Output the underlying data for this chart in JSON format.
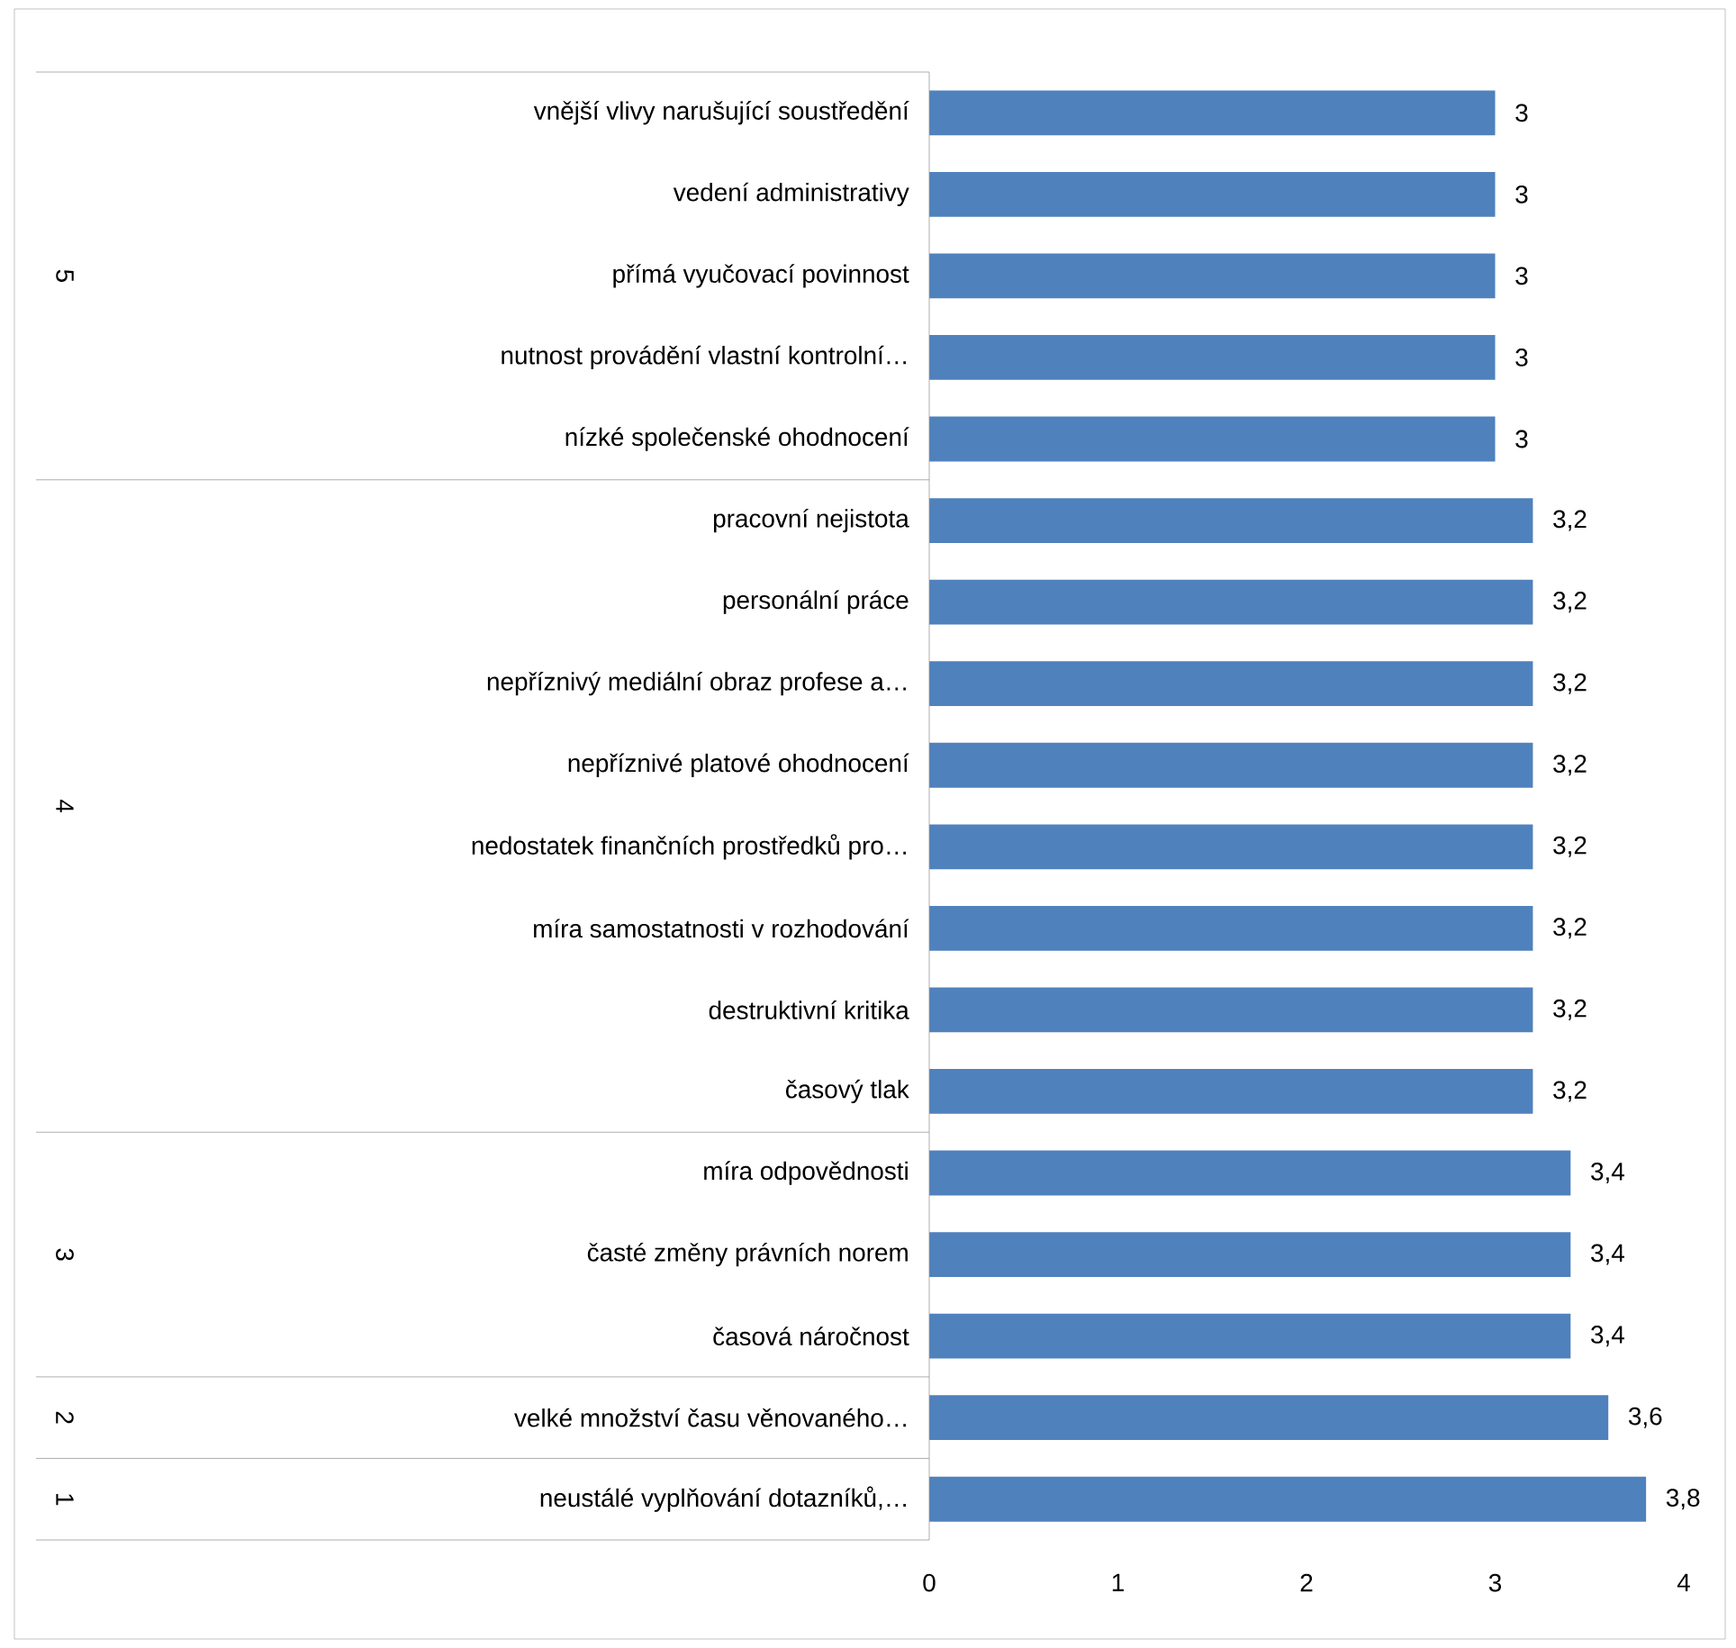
{
  "chart_data": {
    "type": "bar",
    "orientation": "horizontal",
    "categories": [
      "vnější vlivy narušující soustředění",
      "vedení administrativy",
      "přímá vyučovací povinnost",
      "nutnost provádění vlastní kontrolní…",
      "nízké společenské ohodnocení",
      "pracovní nejistota",
      "personální práce",
      "nepříznivý mediální obraz profese a…",
      "nepříznivé platové ohodnocení",
      "nedostatek finančních prostředků pro…",
      "míra samostatnosti v rozhodování",
      "destruktivní kritika",
      "časový tlak",
      "míra odpovědnosti",
      "časté změny právních norem",
      "časová náročnost",
      "velké množství času věnovaného…",
      "neustálé vyplňování dotazníků,…"
    ],
    "values": [
      3,
      3,
      3,
      3,
      3,
      3.2,
      3.2,
      3.2,
      3.2,
      3.2,
      3.2,
      3.2,
      3.2,
      3.4,
      3.4,
      3.4,
      3.6,
      3.8
    ],
    "value_labels": [
      "3",
      "3",
      "3",
      "3",
      "3",
      "3,2",
      "3,2",
      "3,2",
      "3,2",
      "3,2",
      "3,2",
      "3,2",
      "3,2",
      "3,4",
      "3,4",
      "3,4",
      "3,6",
      "3,8"
    ],
    "color": "#4f81bd",
    "xlim": [
      0,
      4
    ],
    "xticks": [
      0,
      1,
      2,
      3,
      4
    ],
    "annotations": [
      "5",
      "4",
      "3",
      "2",
      "1"
    ]
  }
}
